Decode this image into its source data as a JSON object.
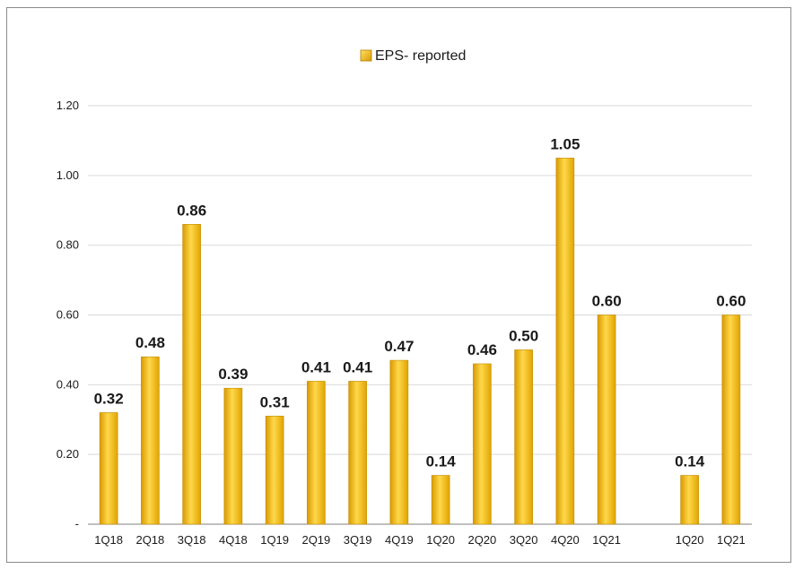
{
  "chart_data": {
    "type": "bar",
    "title": "",
    "xlabel": "",
    "ylabel": "",
    "ylim": [
      0,
      1.2
    ],
    "y_ticks": [
      "-",
      "0.20",
      "0.40",
      "0.60",
      "0.80",
      "1.00",
      "1.20"
    ],
    "y_tick_values": [
      0,
      0.2,
      0.4,
      0.6,
      0.8,
      1.0,
      1.2
    ],
    "grid": true,
    "legend_position": "top-center",
    "categories": [
      "1Q18",
      "2Q18",
      "3Q18",
      "4Q18",
      "1Q19",
      "2Q19",
      "3Q19",
      "4Q19",
      "1Q20",
      "2Q20",
      "3Q20",
      "4Q20",
      "1Q21",
      "",
      "1Q20",
      "1Q21"
    ],
    "series": [
      {
        "name": "EPS- reported",
        "color": "#f5b800",
        "values": [
          0.32,
          0.48,
          0.86,
          0.39,
          0.31,
          0.41,
          0.41,
          0.47,
          0.14,
          0.46,
          0.5,
          1.05,
          0.6,
          null,
          0.14,
          0.6
        ],
        "data_labels": [
          "0.32",
          "0.48",
          "0.86",
          "0.39",
          "0.31",
          "0.41",
          "0.41",
          "0.47",
          "0.14",
          "0.46",
          "0.50",
          "1.05",
          "0.60",
          "",
          "0.14",
          "0.60"
        ]
      }
    ]
  }
}
